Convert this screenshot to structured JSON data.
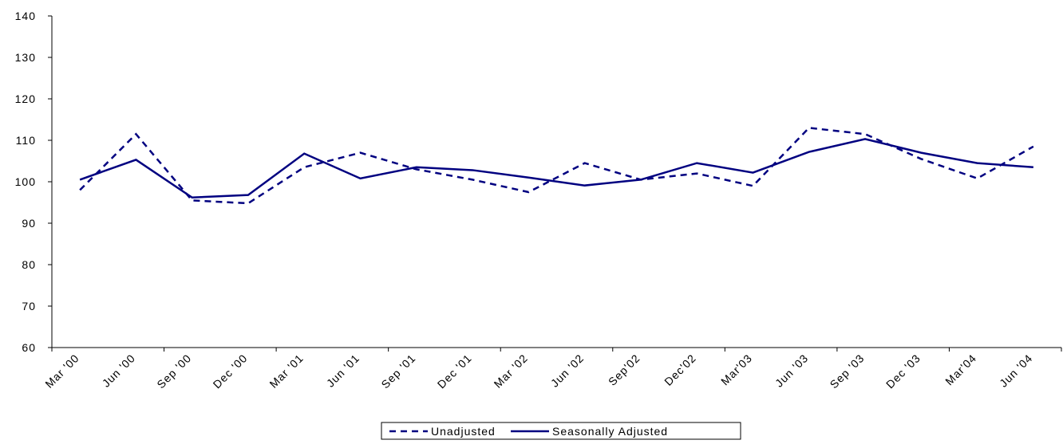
{
  "chart_data": {
    "type": "line",
    "categories": [
      "Mar '00",
      "Jun '00",
      "Sep '00",
      "Dec '00",
      "Mar '01",
      "Jun '01",
      "Sep '01",
      "Dec '01",
      "Mar '02",
      "Jun '02",
      "Sep'02",
      "Dec'02",
      "Mar'03",
      "Jun '03",
      "Sep '03",
      "Dec '03",
      "Mar'04",
      "Jun '04"
    ],
    "series": [
      {
        "name": "Unadjusted",
        "color": "#000080",
        "dash": true,
        "values": [
          98,
          111.5,
          95.5,
          94.8,
          103.5,
          107,
          103,
          100.5,
          97.5,
          104.5,
          100.5,
          102,
          99,
          113,
          111.5,
          105.5,
          100.8,
          108.5
        ]
      },
      {
        "name": "Seasonally Adjusted",
        "color": "#000080",
        "dash": false,
        "values": [
          100.5,
          105.3,
          96.2,
          96.8,
          106.8,
          100.8,
          103.5,
          102.8,
          101,
          99.1,
          100.5,
          104.5,
          102.2,
          107.2,
          110.3,
          107,
          104.5,
          103.5
        ]
      }
    ],
    "ylim": [
      60,
      140
    ],
    "yticks": [
      60,
      70,
      80,
      90,
      100,
      110,
      120,
      130,
      140
    ]
  }
}
